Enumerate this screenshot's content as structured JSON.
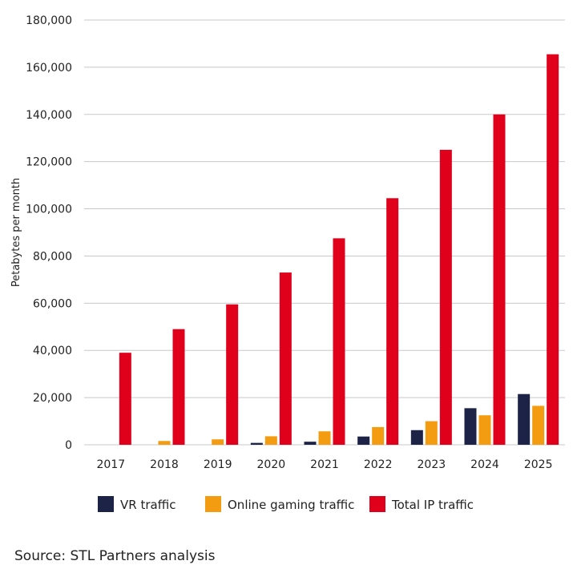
{
  "chart_data": {
    "type": "bar",
    "categories": [
      "2017",
      "2018",
      "2019",
      "2020",
      "2021",
      "2022",
      "2023",
      "2024",
      "2025"
    ],
    "series": [
      {
        "name": "VR traffic",
        "color": "#1c2346",
        "values": [
          0,
          0,
          0,
          800,
          1300,
          3500,
          6200,
          15500,
          21500
        ]
      },
      {
        "name": "Online gaming traffic",
        "color": "#f39c12",
        "values": [
          0,
          1600,
          2300,
          3600,
          5700,
          7500,
          10000,
          12500,
          16500
        ]
      },
      {
        "name": "Total IP traffic",
        "color": "#e0001b",
        "values": [
          39000,
          49000,
          59500,
          73000,
          87500,
          104500,
          125000,
          140000,
          165500
        ]
      }
    ],
    "ylabel": "Petabytes per month",
    "yticks": [
      0,
      20000,
      40000,
      60000,
      80000,
      100000,
      120000,
      140000,
      160000,
      180000
    ],
    "ytick_labels": [
      "0",
      "20,000",
      "40,000",
      "60,000",
      "80,000",
      "100,000",
      "120,000",
      "140,000",
      "160,000",
      "180,000"
    ],
    "ylim": [
      0,
      180000
    ],
    "grid": true,
    "legend_position": "bottom"
  },
  "footer": {
    "source": "Source: STL Partners analysis"
  }
}
